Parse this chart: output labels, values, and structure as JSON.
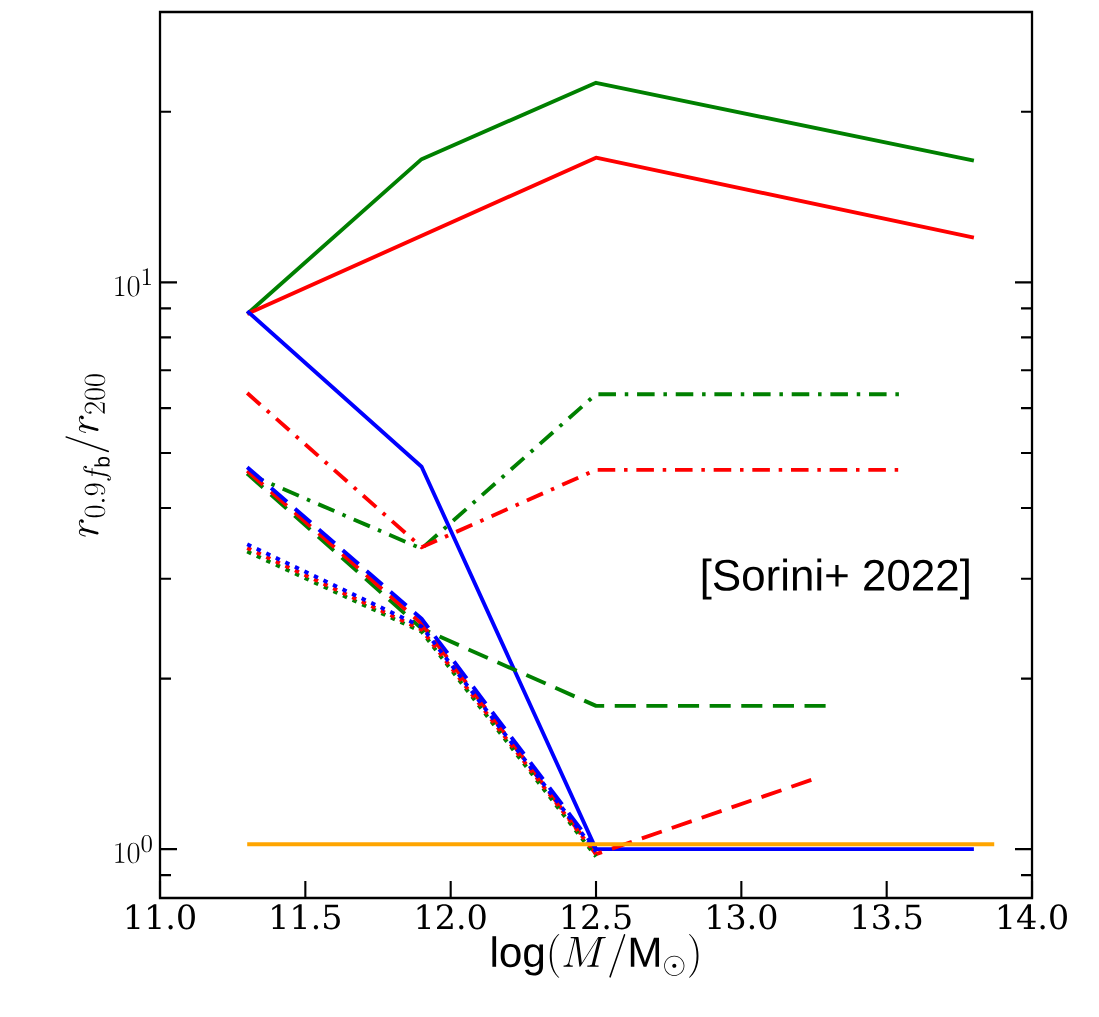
{
  "chart_data": {
    "type": "line",
    "xlabel": "\\log(M/\\mathrm{M}_\\odot)",
    "ylabel": "r_{0.9 f_{\\rm b}}/r_{200}",
    "log": "y",
    "xlim": [
      11.0,
      14.0
    ],
    "ylim": [
      0.82,
      30
    ],
    "xticks": [
      {
        "value": 11.0,
        "label": "11.0"
      },
      {
        "value": 11.5,
        "label": "11.5"
      },
      {
        "value": 12.0,
        "label": "12.0"
      },
      {
        "value": 12.5,
        "label": "12.5"
      },
      {
        "value": 13.0,
        "label": "13.0"
      },
      {
        "value": 13.5,
        "label": "13.5"
      },
      {
        "value": 14.0,
        "label": "14.0"
      }
    ],
    "yticks": [
      {
        "value": 0.9,
        "label": null
      },
      {
        "value": 1,
        "label": "10^{0}"
      },
      {
        "value": 2,
        "label": null
      },
      {
        "value": 3,
        "label": null
      },
      {
        "value": 4,
        "label": null
      },
      {
        "value": 5,
        "label": null
      },
      {
        "value": 6,
        "label": null
      },
      {
        "value": 7,
        "label": null
      },
      {
        "value": 8,
        "label": null
      },
      {
        "value": 9,
        "label": null
      },
      {
        "value": 10,
        "label": "10^{1}"
      },
      {
        "value": 20,
        "label": null
      }
    ],
    "annotations": [
      "[Sorini+ 2022]"
    ],
    "series": [
      {
        "color": "#008000",
        "line_style": "solid",
        "x": [
          11.3,
          11.9,
          12.5,
          13.8
        ],
        "values": [
          8.8,
          16.5,
          22.5,
          16.4
        ]
      },
      {
        "color": "#ff0000",
        "line_style": "solid",
        "x": [
          11.3,
          12.5,
          13.8
        ],
        "values": [
          8.8,
          16.6,
          12.0
        ]
      },
      {
        "color": "#0000ff",
        "line_style": "solid",
        "x": [
          11.3,
          11.9,
          12.5,
          13.8
        ],
        "values": [
          8.9,
          4.73,
          1.0,
          1.0
        ]
      },
      {
        "color": "#008000",
        "line_style": "dashdot",
        "x": [
          11.3,
          11.9,
          12.5,
          13.55
        ],
        "values": [
          4.6,
          3.39,
          6.35,
          6.35
        ]
      },
      {
        "color": "#ff0000",
        "line_style": "dashdot",
        "x": [
          11.3,
          11.9,
          12.5,
          13.55
        ],
        "values": [
          6.38,
          3.41,
          4.67,
          4.67
        ]
      },
      {
        "color": "#008000",
        "line_style": "dashed",
        "x": [
          11.3,
          11.9,
          12.5,
          13.3
        ],
        "values": [
          4.6,
          2.45,
          1.79,
          1.79
        ]
      },
      {
        "color": "#ff0000",
        "line_style": "dashed",
        "x": [
          11.3,
          11.9,
          12.5,
          13.25
        ],
        "values": [
          4.65,
          2.5,
          0.98,
          1.33
        ]
      },
      {
        "color": "#0000ff",
        "line_style": "dashed",
        "x": [
          11.3,
          11.9,
          12.5
        ],
        "values": [
          4.72,
          2.55,
          1.0
        ]
      },
      {
        "color": "#008000",
        "line_style": "dotted",
        "x": [
          11.3,
          11.9,
          12.5
        ],
        "values": [
          3.35,
          2.42,
          0.97
        ]
      },
      {
        "color": "#ff0000",
        "line_style": "dotted",
        "x": [
          11.3,
          11.9,
          12.5
        ],
        "values": [
          3.4,
          2.44,
          0.98
        ]
      },
      {
        "color": "#0000ff",
        "line_style": "dotted",
        "x": [
          11.3,
          11.9,
          12.5
        ],
        "values": [
          3.45,
          2.47,
          0.99
        ]
      },
      {
        "color": "#ffa500",
        "line_style": "solid",
        "x": [
          11.3,
          13.87
        ],
        "values": [
          1.02,
          1.02
        ]
      }
    ]
  }
}
